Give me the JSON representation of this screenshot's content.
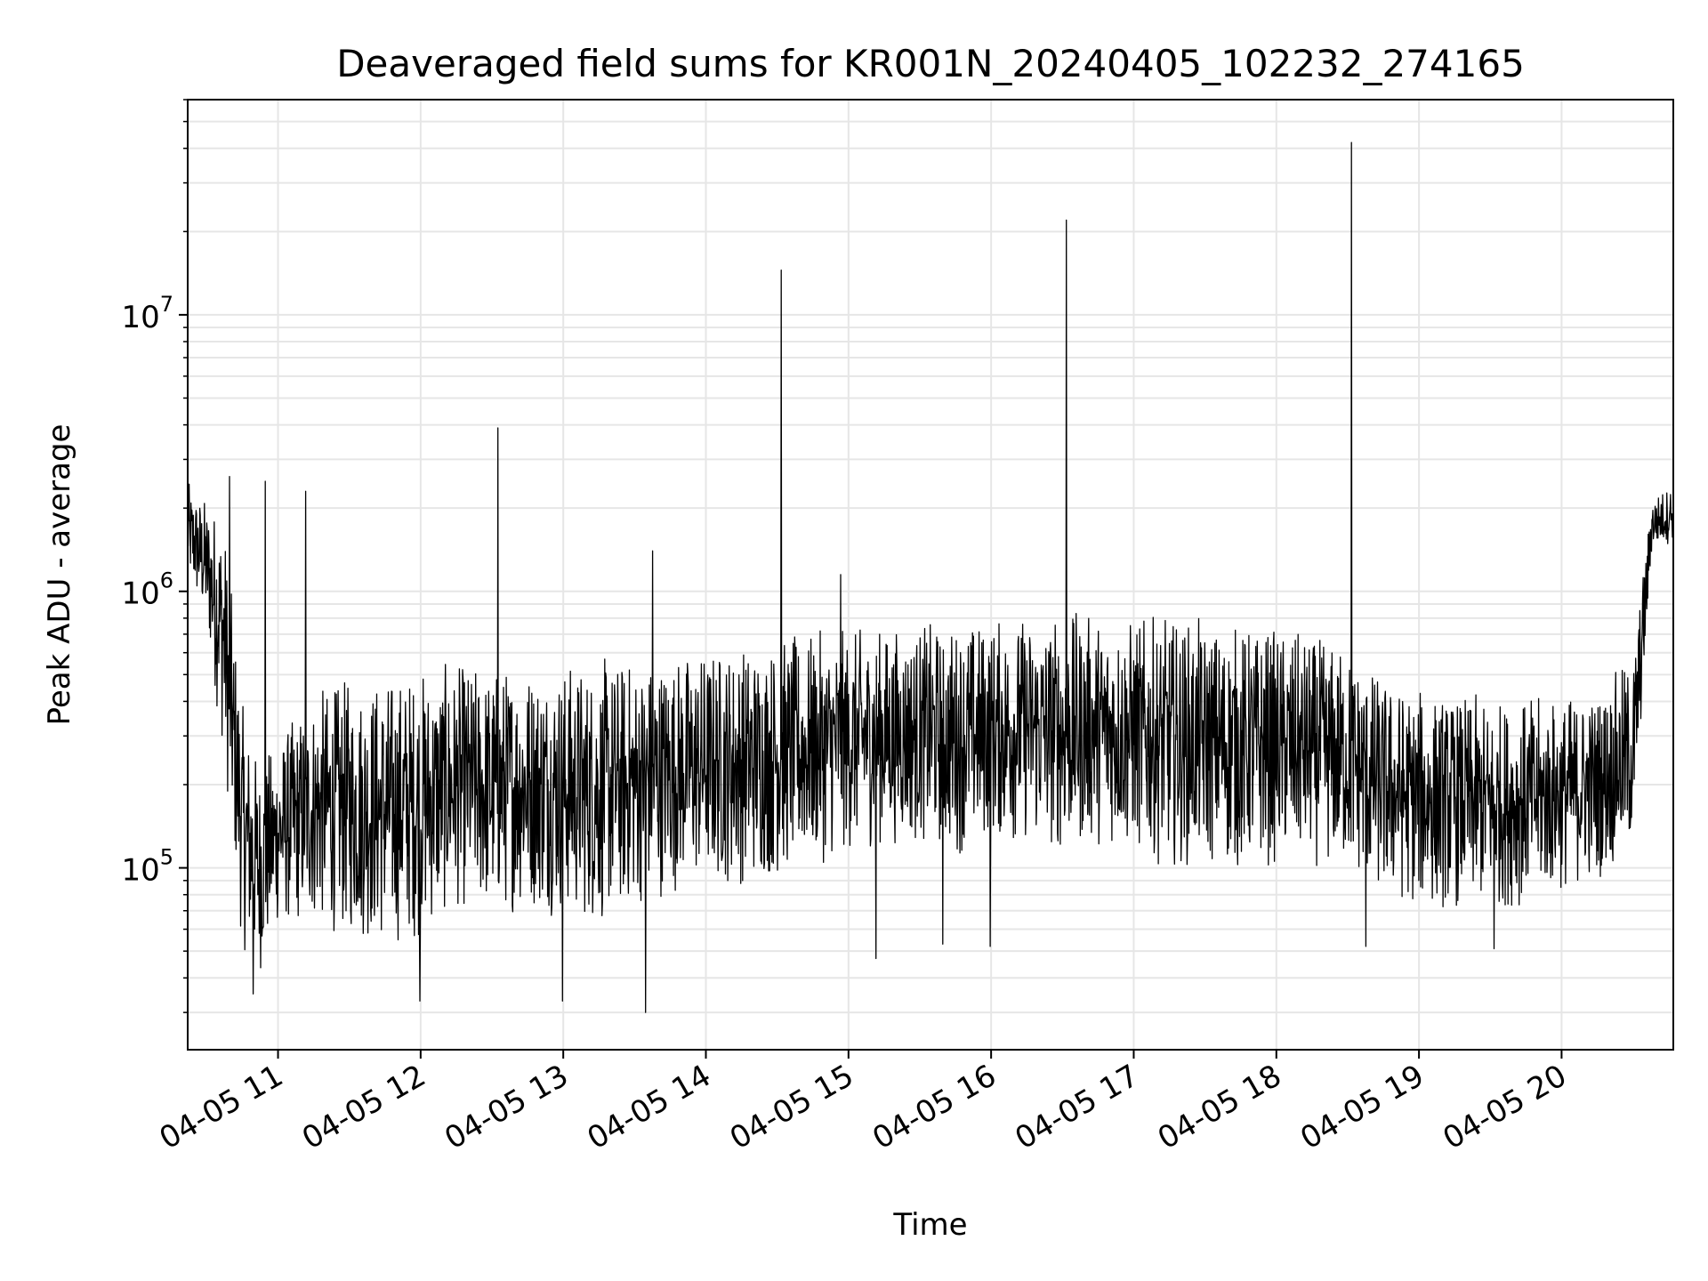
{
  "chart_data": {
    "type": "line",
    "title": "Deaveraged field sums for KR001N_20240405_102232_274165",
    "xlabel": "Time",
    "ylabel": "Peak ADU - average",
    "yscale": "log",
    "ylim": [
      22000,
      60000000
    ],
    "xlim": [
      "2024-04-05 10:22",
      "2024-04-05 20:47"
    ],
    "grid": true,
    "line_color": "#000000",
    "grid_color": "#e6e6e6",
    "x_ticks": [
      {
        "x": "2024-04-05 11:00",
        "label": "04-05 11"
      },
      {
        "x": "2024-04-05 12:00",
        "label": "04-05 12"
      },
      {
        "x": "2024-04-05 13:00",
        "label": "04-05 13"
      },
      {
        "x": "2024-04-05 14:00",
        "label": "04-05 14"
      },
      {
        "x": "2024-04-05 15:00",
        "label": "04-05 15"
      },
      {
        "x": "2024-04-05 16:00",
        "label": "04-05 16"
      },
      {
        "x": "2024-04-05 17:00",
        "label": "04-05 17"
      },
      {
        "x": "2024-04-05 18:00",
        "label": "04-05 18"
      },
      {
        "x": "2024-04-05 19:00",
        "label": "04-05 19"
      },
      {
        "x": "2024-04-05 20:00",
        "label": "04-05 20"
      }
    ],
    "y_ticks": [
      {
        "y": 100000,
        "base": "10",
        "exp": "5"
      },
      {
        "y": 1000000,
        "base": "10",
        "exp": "6"
      },
      {
        "y": 10000000,
        "base": "10",
        "exp": "7"
      }
    ],
    "series": [
      {
        "x": [
          "2024-04-05 10:22",
          "2024-04-05 10:30",
          "2024-04-05 10:37",
          "2024-04-05 10:45",
          "2024-04-05 10:52",
          "2024-04-05 11:00",
          "2024-04-05 11:15",
          "2024-04-05 11:30",
          "2024-04-05 11:45",
          "2024-04-05 12:00",
          "2024-04-05 12:15",
          "2024-04-05 12:30",
          "2024-04-05 12:45",
          "2024-04-05 13:00",
          "2024-04-05 13:15",
          "2024-04-05 13:30",
          "2024-04-05 13:45",
          "2024-04-05 14:00",
          "2024-04-05 14:15",
          "2024-04-05 14:30",
          "2024-04-05 14:45",
          "2024-04-05 15:00",
          "2024-04-05 15:15",
          "2024-04-05 15:30",
          "2024-04-05 15:45",
          "2024-04-05 16:00",
          "2024-04-05 16:15",
          "2024-04-05 16:30",
          "2024-04-05 16:45",
          "2024-04-05 17:00",
          "2024-04-05 17:15",
          "2024-04-05 17:30",
          "2024-04-05 17:45",
          "2024-04-05 18:00",
          "2024-04-05 18:15",
          "2024-04-05 18:30",
          "2024-04-05 18:45",
          "2024-04-05 19:00",
          "2024-04-05 19:15",
          "2024-04-05 19:30",
          "2024-04-05 19:45",
          "2024-04-05 20:00",
          "2024-04-05 20:15",
          "2024-04-05 20:30",
          "2024-04-05 20:38",
          "2024-04-05 20:47"
        ],
        "low": [
          1100000,
          700000,
          250000,
          50000,
          40000,
          60000,
          60000,
          55000,
          50000,
          55000,
          70000,
          65000,
          70000,
          65000,
          60000,
          70000,
          80000,
          85000,
          85000,
          90000,
          100000,
          110000,
          120000,
          120000,
          110000,
          120000,
          120000,
          110000,
          120000,
          110000,
          100000,
          100000,
          95000,
          100000,
          100000,
          95000,
          75000,
          70000,
          70000,
          70000,
          72000,
          80000,
          90000,
          110000,
          1400000,
          1500000
        ],
        "high": [
          2500000,
          2200000,
          2000000,
          400000,
          250000,
          300000,
          450000,
          500000,
          520000,
          550000,
          560000,
          560000,
          580000,
          580000,
          590000,
          600000,
          620000,
          650000,
          680000,
          700000,
          720000,
          750000,
          760000,
          780000,
          800000,
          820000,
          850000,
          860000,
          850000,
          830000,
          820000,
          800000,
          780000,
          760000,
          700000,
          650000,
          500000,
          450000,
          430000,
          420000,
          420000,
          430000,
          450000,
          600000,
          2200000,
          2500000
        ],
        "spikes": [
          {
            "x": "2024-04-05 10:40",
            "y": 2600000
          },
          {
            "x": "2024-04-05 10:55",
            "y": 2500000
          },
          {
            "x": "2024-04-05 11:12",
            "y": 2300000
          },
          {
            "x": "2024-04-05 12:33",
            "y": 3900000
          },
          {
            "x": "2024-04-05 13:38",
            "y": 1400000
          },
          {
            "x": "2024-04-05 14:32",
            "y": 14500000
          },
          {
            "x": "2024-04-05 14:57",
            "y": 1150000
          },
          {
            "x": "2024-04-05 16:32",
            "y": 22000000
          },
          {
            "x": "2024-04-05 18:32",
            "y": 42000000
          }
        ],
        "dips": [
          {
            "x": "2024-04-05 10:50",
            "y": 35000
          },
          {
            "x": "2024-04-05 12:00",
            "y": 33000
          },
          {
            "x": "2024-04-05 13:00",
            "y": 33000
          },
          {
            "x": "2024-04-05 13:35",
            "y": 30000
          },
          {
            "x": "2024-04-05 15:12",
            "y": 47000
          },
          {
            "x": "2024-04-05 15:40",
            "y": 53000
          },
          {
            "x": "2024-04-05 16:00",
            "y": 52000
          },
          {
            "x": "2024-04-05 18:38",
            "y": 52000
          },
          {
            "x": "2024-04-05 19:32",
            "y": 51000
          }
        ]
      }
    ]
  }
}
